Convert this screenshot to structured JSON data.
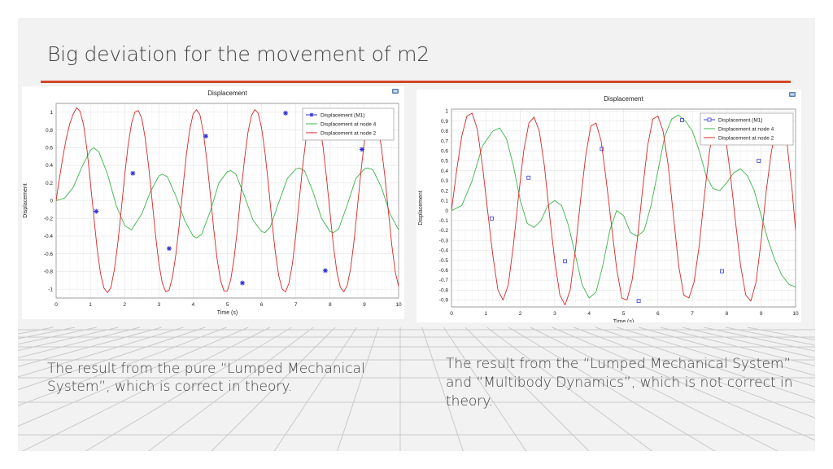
{
  "slide": {
    "title": "Big deviation for the movement of m2",
    "accent_color": "#d24726",
    "caption_left": "The result from the pure “Lumped Mechanical System”, which is correct in theory.",
    "caption_right": "The result from the “Lumped Mechanical System” and  “Multibody Dynamics”, which is not correct in theory."
  },
  "chart_data": [
    {
      "type": "line",
      "title": "Displacement",
      "xlabel": "Time (s)",
      "ylabel": "Displacement",
      "xlim": [
        0,
        10
      ],
      "ylim": [
        -1.1,
        1.1
      ],
      "xticks": [
        "0",
        "1",
        "2",
        "3",
        "4",
        "5",
        "6",
        "7",
        "8",
        "9",
        "10"
      ],
      "yticks": [
        "1",
        "0.8",
        "0.6",
        "0.4",
        "0.2",
        "0",
        "-0.2",
        "-0.4",
        "-0.6",
        "-0.8",
        "-1"
      ],
      "grid": true,
      "legend_position": "top-right",
      "corner_icon": "camera-icon",
      "series": [
        {
          "name": "Displacement (M1)",
          "color": "#2b2bd6",
          "marker": "star",
          "line": false,
          "x": [
            1.17,
            2.24,
            3.3,
            4.37,
            5.44,
            6.7,
            7.86,
            8.93
          ],
          "y": [
            -0.12,
            0.31,
            -0.54,
            0.73,
            -0.93,
            0.99,
            -0.79,
            0.58
          ]
        },
        {
          "name": "Displacement at node 4",
          "color": "#3cb44b",
          "x": [
            0,
            0.25,
            0.5,
            0.75,
            1,
            1.1,
            1.25,
            1.5,
            1.75,
            2,
            2.2,
            2.5,
            2.75,
            3,
            3.1,
            3.25,
            3.5,
            3.75,
            4,
            4.1,
            4.25,
            4.5,
            4.75,
            5,
            5.1,
            5.25,
            5.5,
            5.75,
            6,
            6.1,
            6.25,
            6.5,
            6.75,
            7,
            7.1,
            7.25,
            7.5,
            7.75,
            8,
            8.1,
            8.25,
            8.5,
            8.75,
            9,
            9.1,
            9.25,
            9.5,
            9.75,
            10
          ],
          "y": [
            0,
            0.03,
            0.15,
            0.38,
            0.57,
            0.6,
            0.55,
            0.3,
            -0.05,
            -0.28,
            -0.33,
            -0.15,
            0.1,
            0.28,
            0.3,
            0.27,
            0.05,
            -0.22,
            -0.4,
            -0.42,
            -0.38,
            -0.12,
            0.2,
            0.33,
            0.34,
            0.3,
            0.05,
            -0.22,
            -0.35,
            -0.36,
            -0.3,
            -0.02,
            0.25,
            0.36,
            0.37,
            0.34,
            0.1,
            -0.2,
            -0.35,
            -0.36,
            -0.32,
            -0.05,
            0.25,
            0.36,
            0.37,
            0.35,
            0.15,
            -0.15,
            -0.33
          ]
        },
        {
          "name": "Displacement at node 2",
          "color": "#d62728",
          "x": [
            0,
            0.1,
            0.2,
            0.3,
            0.4,
            0.5,
            0.6,
            0.7,
            0.8,
            0.9,
            1,
            1.1,
            1.2,
            1.3,
            1.4,
            1.5,
            1.6,
            1.7,
            1.8,
            1.9,
            2,
            2.1,
            2.2,
            2.3,
            2.4,
            2.5,
            2.6,
            2.7,
            2.8,
            2.9,
            3,
            3.1,
            3.2,
            3.3,
            3.4,
            3.5,
            3.6,
            3.7,
            3.8,
            3.9,
            4,
            4.1,
            4.2,
            4.3,
            4.4,
            4.5,
            4.6,
            4.7,
            4.8,
            4.9,
            5,
            5.1,
            5.2,
            5.3,
            5.4,
            5.5,
            5.6,
            5.7,
            5.8,
            5.9,
            6,
            6.1,
            6.2,
            6.3,
            6.4,
            6.5,
            6.6,
            6.7,
            6.8,
            6.9,
            7,
            7.1,
            7.2,
            7.3,
            7.4,
            7.5,
            7.6,
            7.7,
            7.8,
            7.9,
            8,
            8.1,
            8.2,
            8.3,
            8.4,
            8.5,
            8.6,
            8.7,
            8.8,
            8.9,
            9,
            9.1,
            9.2,
            9.3,
            9.4,
            9.5,
            9.6,
            9.7,
            9.8,
            9.9,
            10
          ],
          "y": [
            0,
            0.26,
            0.5,
            0.71,
            0.87,
            0.98,
            1.05,
            1.01,
            0.86,
            0.58,
            0.21,
            -0.18,
            -0.55,
            -0.83,
            -0.99,
            -1.04,
            -0.98,
            -0.78,
            -0.48,
            -0.11,
            0.28,
            0.62,
            0.87,
            1.0,
            1.02,
            0.93,
            0.71,
            0.39,
            0.01,
            -0.38,
            -0.71,
            -0.93,
            -1.03,
            -1.01,
            -0.86,
            -0.6,
            -0.25,
            0.14,
            0.51,
            0.8,
            0.98,
            1.03,
            0.97,
            0.77,
            0.46,
            0.08,
            -0.32,
            -0.66,
            -0.9,
            -1.02,
            -1.02,
            -0.89,
            -0.64,
            -0.3,
            0.1,
            0.47,
            0.77,
            0.96,
            1.03,
            0.99,
            0.82,
            0.54,
            0.18,
            -0.22,
            -0.58,
            -0.85,
            -1.0,
            -1.03,
            -0.93,
            -0.71,
            -0.38,
            0.01,
            0.39,
            0.71,
            0.93,
            1.02,
            1.0,
            0.85,
            0.59,
            0.24,
            -0.15,
            -0.52,
            -0.81,
            -0.98,
            -1.03,
            -0.96,
            -0.76,
            -0.45,
            -0.06,
            0.33,
            0.67,
            0.91,
            1.02,
            0.99,
            0.85,
            0.6,
            0.27,
            -0.12,
            -0.5,
            -0.8,
            -0.97
          ]
        }
      ]
    },
    {
      "type": "line",
      "title": "Displacement",
      "xlabel": "Time (s)",
      "ylabel": "Displacement",
      "xlim": [
        0,
        10
      ],
      "ylim": [
        -0.97,
        1.02
      ],
      "xticks": [
        "0",
        "1",
        "2",
        "3",
        "4",
        "5",
        "6",
        "7",
        "8",
        "9",
        "10"
      ],
      "yticks": [
        "1",
        "0.9",
        "0.8",
        "0.7",
        "0.6",
        "0.5",
        "0.4",
        "0.3",
        "0.2",
        "0.1",
        "0",
        "-0.1",
        "-0.2",
        "-0.3",
        "-0.4",
        "-0.5",
        "-0.6",
        "-0.7",
        "-0.8",
        "-0.9"
      ],
      "grid": true,
      "legend_position": "top-right",
      "corner_icon": "camera-icon",
      "series": [
        {
          "name": "Displacement (M1)",
          "color": "#3a3ad8",
          "marker": "square",
          "line": false,
          "x": [
            1.17,
            2.24,
            3.3,
            4.37,
            5.44,
            6.7,
            7.86,
            8.93
          ],
          "y": [
            -0.08,
            0.33,
            -0.51,
            0.62,
            -0.91,
            0.91,
            -0.61,
            0.5
          ]
        },
        {
          "name": "Displacement at node 4",
          "color": "#3cb44b",
          "x": [
            0,
            0.3,
            0.6,
            0.9,
            1.2,
            1.4,
            1.6,
            1.8,
            2,
            2.2,
            2.4,
            2.6,
            2.8,
            3,
            3.2,
            3.4,
            3.6,
            3.8,
            4,
            4.2,
            4.4,
            4.6,
            4.8,
            5,
            5.2,
            5.4,
            5.6,
            5.8,
            6,
            6.2,
            6.4,
            6.6,
            6.8,
            7,
            7.2,
            7.4,
            7.6,
            7.8,
            8,
            8.2,
            8.4,
            8.6,
            8.8,
            9,
            9.2,
            9.4,
            9.6,
            9.8,
            10
          ],
          "y": [
            0,
            0.05,
            0.3,
            0.65,
            0.8,
            0.83,
            0.72,
            0.45,
            0.1,
            -0.13,
            -0.17,
            -0.1,
            0.05,
            0.1,
            0.05,
            -0.15,
            -0.45,
            -0.75,
            -0.88,
            -0.82,
            -0.55,
            -0.2,
            0.0,
            -0.05,
            -0.22,
            -0.26,
            -0.2,
            0.05,
            0.4,
            0.75,
            0.92,
            0.96,
            0.9,
            0.8,
            0.6,
            0.35,
            0.22,
            0.2,
            0.28,
            0.38,
            0.42,
            0.35,
            0.2,
            -0.05,
            -0.3,
            -0.5,
            -0.65,
            -0.74,
            -0.77
          ]
        },
        {
          "name": "Displacement at node 2",
          "color": "#d62728",
          "x": [
            0,
            0.15,
            0.3,
            0.45,
            0.6,
            0.75,
            0.9,
            1.05,
            1.2,
            1.35,
            1.5,
            1.65,
            1.8,
            1.95,
            2.1,
            2.25,
            2.4,
            2.55,
            2.7,
            2.85,
            3,
            3.15,
            3.3,
            3.45,
            3.6,
            3.75,
            3.9,
            4.05,
            4.2,
            4.35,
            4.5,
            4.65,
            4.8,
            4.95,
            5.1,
            5.25,
            5.4,
            5.55,
            5.7,
            5.85,
            6,
            6.15,
            6.3,
            6.45,
            6.6,
            6.75,
            6.9,
            7.05,
            7.2,
            7.35,
            7.5,
            7.65,
            7.8,
            7.95,
            8.1,
            8.25,
            8.4,
            8.55,
            8.7,
            8.85,
            9,
            9.15,
            9.3,
            9.45,
            9.6,
            9.75,
            9.9,
            10
          ],
          "y": [
            0,
            0.4,
            0.75,
            0.95,
            0.98,
            0.82,
            0.45,
            0.0,
            -0.45,
            -0.8,
            -0.9,
            -0.75,
            -0.35,
            0.15,
            0.6,
            0.88,
            0.94,
            0.8,
            0.45,
            -0.05,
            -0.5,
            -0.85,
            -0.95,
            -0.8,
            -0.4,
            0.1,
            0.55,
            0.85,
            0.88,
            0.7,
            0.3,
            -0.15,
            -0.58,
            -0.88,
            -0.9,
            -0.7,
            -0.3,
            0.2,
            0.65,
            0.92,
            0.95,
            0.8,
            0.45,
            -0.05,
            -0.55,
            -0.85,
            -0.88,
            -0.72,
            -0.35,
            0.15,
            0.6,
            0.9,
            0.96,
            0.78,
            0.38,
            -0.1,
            -0.55,
            -0.85,
            -0.91,
            -0.72,
            -0.3,
            0.2,
            0.6,
            0.85,
            0.88,
            0.68,
            0.2,
            -0.2
          ]
        }
      ]
    }
  ]
}
